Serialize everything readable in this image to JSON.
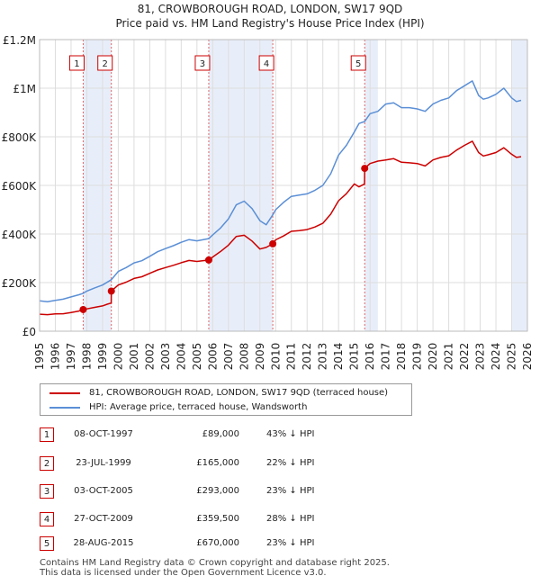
{
  "chart_data": {
    "type": "line",
    "title": "81, CROWBOROUGH ROAD, LONDON, SW17 9QD",
    "subtitle": "Price paid vs. HM Land Registry's House Price Index (HPI)",
    "xlim": [
      1995,
      2026
    ],
    "ylim": [
      0,
      1200000
    ],
    "y_ticks": [
      0,
      200000,
      400000,
      600000,
      800000,
      1000000,
      1200000
    ],
    "y_tick_labels": [
      "£0",
      "£200K",
      "£400K",
      "£600K",
      "£800K",
      "£1M",
      "£1.2M"
    ],
    "x_ticks": [
      1995,
      1996,
      1997,
      1998,
      1999,
      2000,
      2001,
      2002,
      2003,
      2004,
      2005,
      2006,
      2007,
      2008,
      2009,
      2010,
      2011,
      2012,
      2013,
      2014,
      2015,
      2016,
      2017,
      2018,
      2019,
      2020,
      2021,
      2022,
      2023,
      2024,
      2025,
      2026
    ],
    "x_tick_labels": [
      "1995",
      "1996",
      "1997",
      "1998",
      "1999",
      "2000",
      "2001",
      "2002",
      "2003",
      "2004",
      "2005",
      "2006",
      "2007",
      "2008",
      "2009",
      "2010",
      "2011",
      "2012",
      "2013",
      "2014",
      "2015",
      "2016",
      "2017",
      "2018",
      "2019",
      "2020",
      "2021",
      "2022",
      "2023",
      "2024",
      "2025",
      "2026"
    ],
    "shaded_periods": [
      [
        1997.77,
        1999.56
      ],
      [
        2005.75,
        2009.82
      ],
      [
        2015.66,
        2016.5
      ],
      [
        2025.0,
        2026.0
      ]
    ],
    "series": [
      {
        "name": "HPI: Average price, terraced house, Wandsworth",
        "color": "#5b8fd6",
        "x": [
          1995.0,
          1995.5,
          1996.0,
          1996.5,
          1997.0,
          1997.5,
          1997.77,
          1998.0,
          1998.5,
          1999.0,
          1999.56,
          2000.0,
          2000.5,
          2001.0,
          2001.5,
          2002.0,
          2002.5,
          2003.0,
          2003.5,
          2004.0,
          2004.5,
          2005.0,
          2005.75,
          2006.0,
          2006.5,
          2007.0,
          2007.5,
          2008.0,
          2008.5,
          2009.0,
          2009.4,
          2009.82,
          2010.0,
          2010.5,
          2011.0,
          2011.5,
          2012.0,
          2012.5,
          2013.0,
          2013.5,
          2014.0,
          2014.5,
          2015.0,
          2015.3,
          2015.66,
          2016.0,
          2016.5,
          2017.0,
          2017.5,
          2018.0,
          2018.5,
          2019.0,
          2019.5,
          2020.0,
          2020.5,
          2021.0,
          2021.5,
          2022.0,
          2022.5,
          2022.9,
          2023.2,
          2023.5,
          2024.0,
          2024.5,
          2025.0,
          2025.3,
          2025.6
        ],
        "values": [
          125000,
          121000,
          127000,
          132000,
          141000,
          150000,
          156000,
          165000,
          178000,
          190000,
          212000,
          246000,
          262000,
          281000,
          290000,
          308000,
          327000,
          340000,
          352000,
          366000,
          377000,
          372000,
          381000,
          396000,
          425000,
          462000,
          520000,
          535000,
          505000,
          455000,
          438000,
          479000,
          500000,
          530000,
          555000,
          560000,
          565000,
          580000,
          600000,
          648000,
          725000,
          765000,
          820000,
          855000,
          863000,
          895000,
          905000,
          935000,
          940000,
          920000,
          920000,
          915000,
          905000,
          935000,
          950000,
          960000,
          990000,
          1010000,
          1030000,
          970000,
          955000,
          960000,
          975000,
          1000000,
          960000,
          945000,
          950000
        ]
      },
      {
        "name": "81, CROWBOROUGH ROAD, LONDON, SW17 9QD (terraced house)",
        "color": "#cc0000",
        "x": [
          1995.0,
          1995.5,
          1996.0,
          1996.5,
          1997.0,
          1997.5,
          1997.77,
          1998.0,
          1998.5,
          1999.0,
          1999.3,
          1999.55,
          1999.56,
          2000.0,
          2000.5,
          2001.0,
          2001.5,
          2002.0,
          2002.5,
          2003.0,
          2003.5,
          2004.0,
          2004.5,
          2005.0,
          2005.75,
          2006.0,
          2006.5,
          2007.0,
          2007.5,
          2008.0,
          2008.5,
          2009.0,
          2009.4,
          2009.82,
          2010.0,
          2010.5,
          2011.0,
          2011.5,
          2012.0,
          2012.5,
          2013.0,
          2013.5,
          2014.0,
          2014.5,
          2015.0,
          2015.3,
          2015.65,
          2015.66,
          2016.0,
          2016.5,
          2017.0,
          2017.5,
          2018.0,
          2018.5,
          2019.0,
          2019.5,
          2020.0,
          2020.5,
          2021.0,
          2021.5,
          2022.0,
          2022.5,
          2022.9,
          2023.2,
          2023.5,
          2024.0,
          2024.5,
          2025.0,
          2025.3,
          2025.6
        ],
        "values": [
          70000,
          68000,
          71000,
          72000,
          77000,
          83000,
          89000,
          92000,
          98000,
          104000,
          111000,
          116000,
          165000,
          190000,
          202000,
          217000,
          224000,
          238000,
          252000,
          262000,
          271000,
          282000,
          291000,
          287000,
          293000,
          305000,
          328000,
          354000,
          390000,
          395000,
          371000,
          338000,
          345000,
          359500,
          376000,
          392000,
          411000,
          414000,
          418000,
          429000,
          444000,
          482000,
          537000,
          566000,
          606000,
          594000,
          606000,
          670000,
          690000,
          700000,
          705000,
          710000,
          695000,
          693000,
          690000,
          680000,
          705000,
          715000,
          722000,
          745000,
          765000,
          782000,
          735000,
          721000,
          726000,
          735000,
          755000,
          728000,
          715000,
          718000
        ]
      }
    ],
    "sales": [
      {
        "label": "1",
        "x": 1997.77,
        "price": 89000
      },
      {
        "label": "2",
        "x": 1999.56,
        "price": 165000
      },
      {
        "label": "3",
        "x": 2005.75,
        "price": 293000
      },
      {
        "label": "4",
        "x": 2009.82,
        "price": 359500
      },
      {
        "label": "5",
        "x": 2015.66,
        "price": 670000
      }
    ]
  },
  "header": {
    "title": "81, CROWBOROUGH ROAD, LONDON, SW17 9QD",
    "subtitle": "Price paid vs. HM Land Registry's House Price Index (HPI)"
  },
  "legend": {
    "property_label": "81, CROWBOROUGH ROAD, LONDON, SW17 9QD (terraced house)",
    "property_color": "#cc0000",
    "hpi_label": "HPI: Average price, terraced house, Wandsworth",
    "hpi_color": "#5b8fd6"
  },
  "transactions": [
    {
      "num": "1",
      "date": "08-OCT-1997",
      "price": "£89,000",
      "hpi": "43% ↓ HPI"
    },
    {
      "num": "2",
      "date": "23-JUL-1999",
      "price": "£165,000",
      "hpi": "22% ↓ HPI"
    },
    {
      "num": "3",
      "date": "03-OCT-2005",
      "price": "£293,000",
      "hpi": "23% ↓ HPI"
    },
    {
      "num": "4",
      "date": "27-OCT-2009",
      "price": "£359,500",
      "hpi": "28% ↓ HPI"
    },
    {
      "num": "5",
      "date": "28-AUG-2015",
      "price": "£670,000",
      "hpi": "23% ↓ HPI"
    }
  ],
  "footer": {
    "line1": "Contains HM Land Registry data © Crown copyright and database right 2025.",
    "line2": "This data is licensed under the Open Government Licence v3.0."
  }
}
